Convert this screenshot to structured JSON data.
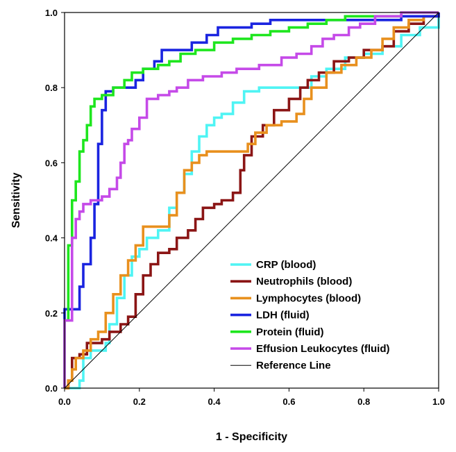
{
  "chart_data": {
    "type": "line",
    "title": "",
    "xlabel": "1 - Specificity",
    "ylabel": "Sensitivity",
    "xlim": [
      0,
      1
    ],
    "ylim": [
      0,
      1
    ],
    "x_ticks": [
      "0.0",
      "0.2",
      "0.4",
      "0.6",
      "0.8",
      "1.0"
    ],
    "y_ticks": [
      "0.0",
      "0.2",
      "0.4",
      "0.6",
      "0.8",
      "1.0"
    ],
    "grid": false,
    "legend_position": "bottom-right",
    "series": [
      {
        "name": "CRP (blood)",
        "color": "#4ff4f4",
        "points": [
          [
            0,
            0
          ],
          [
            0.02,
            0
          ],
          [
            0.04,
            0.02
          ],
          [
            0.05,
            0.08
          ],
          [
            0.07,
            0.1
          ],
          [
            0.09,
            0.1
          ],
          [
            0.11,
            0.12
          ],
          [
            0.12,
            0.17
          ],
          [
            0.14,
            0.24
          ],
          [
            0.16,
            0.3
          ],
          [
            0.18,
            0.35
          ],
          [
            0.2,
            0.37
          ],
          [
            0.22,
            0.4
          ],
          [
            0.25,
            0.42
          ],
          [
            0.28,
            0.48
          ],
          [
            0.3,
            0.52
          ],
          [
            0.32,
            0.57
          ],
          [
            0.34,
            0.63
          ],
          [
            0.36,
            0.67
          ],
          [
            0.38,
            0.7
          ],
          [
            0.4,
            0.72
          ],
          [
            0.42,
            0.73
          ],
          [
            0.45,
            0.76
          ],
          [
            0.48,
            0.79
          ],
          [
            0.52,
            0.8
          ],
          [
            0.58,
            0.8
          ],
          [
            0.62,
            0.8
          ],
          [
            0.66,
            0.83
          ],
          [
            0.7,
            0.85
          ],
          [
            0.75,
            0.88
          ],
          [
            0.8,
            0.89
          ],
          [
            0.85,
            0.91
          ],
          [
            0.9,
            0.94
          ],
          [
            0.95,
            0.96
          ],
          [
            1.0,
            1.0
          ]
        ]
      },
      {
        "name": "Neutrophils (blood)",
        "color": "#8b1515",
        "points": [
          [
            0,
            0
          ],
          [
            0.01,
            0.02
          ],
          [
            0.02,
            0.08
          ],
          [
            0.04,
            0.09
          ],
          [
            0.06,
            0.12
          ],
          [
            0.1,
            0.13
          ],
          [
            0.12,
            0.15
          ],
          [
            0.15,
            0.17
          ],
          [
            0.17,
            0.19
          ],
          [
            0.19,
            0.25
          ],
          [
            0.21,
            0.3
          ],
          [
            0.23,
            0.33
          ],
          [
            0.25,
            0.36
          ],
          [
            0.28,
            0.37
          ],
          [
            0.3,
            0.4
          ],
          [
            0.33,
            0.42
          ],
          [
            0.35,
            0.45
          ],
          [
            0.37,
            0.48
          ],
          [
            0.4,
            0.49
          ],
          [
            0.42,
            0.5
          ],
          [
            0.45,
            0.52
          ],
          [
            0.47,
            0.58
          ],
          [
            0.48,
            0.62
          ],
          [
            0.5,
            0.67
          ],
          [
            0.53,
            0.7
          ],
          [
            0.56,
            0.74
          ],
          [
            0.6,
            0.77
          ],
          [
            0.63,
            0.8
          ],
          [
            0.65,
            0.82
          ],
          [
            0.68,
            0.84
          ],
          [
            0.72,
            0.87
          ],
          [
            0.76,
            0.88
          ],
          [
            0.8,
            0.9
          ],
          [
            0.85,
            0.91
          ],
          [
            0.88,
            0.95
          ],
          [
            0.92,
            0.97
          ],
          [
            0.96,
            0.99
          ],
          [
            1.0,
            1.0
          ]
        ]
      },
      {
        "name": "Lymphocytes (blood)",
        "color": "#e8901e",
        "points": [
          [
            0,
            0
          ],
          [
            0.01,
            0.02
          ],
          [
            0.02,
            0.05
          ],
          [
            0.03,
            0.08
          ],
          [
            0.05,
            0.1
          ],
          [
            0.07,
            0.13
          ],
          [
            0.09,
            0.15
          ],
          [
            0.11,
            0.2
          ],
          [
            0.13,
            0.25
          ],
          [
            0.15,
            0.3
          ],
          [
            0.17,
            0.34
          ],
          [
            0.19,
            0.38
          ],
          [
            0.21,
            0.43
          ],
          [
            0.25,
            0.43
          ],
          [
            0.28,
            0.46
          ],
          [
            0.3,
            0.52
          ],
          [
            0.32,
            0.58
          ],
          [
            0.34,
            0.6
          ],
          [
            0.36,
            0.62
          ],
          [
            0.38,
            0.63
          ],
          [
            0.4,
            0.63
          ],
          [
            0.44,
            0.63
          ],
          [
            0.47,
            0.63
          ],
          [
            0.49,
            0.65
          ],
          [
            0.51,
            0.68
          ],
          [
            0.54,
            0.7
          ],
          [
            0.58,
            0.71
          ],
          [
            0.62,
            0.73
          ],
          [
            0.64,
            0.77
          ],
          [
            0.66,
            0.8
          ],
          [
            0.7,
            0.84
          ],
          [
            0.74,
            0.86
          ],
          [
            0.78,
            0.88
          ],
          [
            0.82,
            0.9
          ],
          [
            0.85,
            0.93
          ],
          [
            0.88,
            0.96
          ],
          [
            0.92,
            0.98
          ],
          [
            0.96,
            0.99
          ],
          [
            1.0,
            1.0
          ]
        ]
      },
      {
        "name": "LDH (fluid)",
        "color": "#1a24e0",
        "points": [
          [
            0,
            0
          ],
          [
            0,
            0.21
          ],
          [
            0.03,
            0.21
          ],
          [
            0.04,
            0.27
          ],
          [
            0.05,
            0.33
          ],
          [
            0.07,
            0.4
          ],
          [
            0.08,
            0.49
          ],
          [
            0.09,
            0.65
          ],
          [
            0.1,
            0.74
          ],
          [
            0.11,
            0.79
          ],
          [
            0.13,
            0.8
          ],
          [
            0.17,
            0.8
          ],
          [
            0.19,
            0.82
          ],
          [
            0.21,
            0.85
          ],
          [
            0.24,
            0.87
          ],
          [
            0.26,
            0.9
          ],
          [
            0.3,
            0.9
          ],
          [
            0.34,
            0.92
          ],
          [
            0.38,
            0.94
          ],
          [
            0.41,
            0.96
          ],
          [
            0.45,
            0.96
          ],
          [
            0.5,
            0.97
          ],
          [
            0.55,
            0.98
          ],
          [
            0.6,
            0.98
          ],
          [
            0.7,
            0.98
          ],
          [
            0.8,
            0.98
          ],
          [
            0.9,
            0.99
          ],
          [
            1.0,
            1.0
          ]
        ]
      },
      {
        "name": "Protein (fluid)",
        "color": "#1ee61e",
        "points": [
          [
            0,
            0
          ],
          [
            0,
            0.18
          ],
          [
            0.01,
            0.38
          ],
          [
            0.02,
            0.5
          ],
          [
            0.03,
            0.55
          ],
          [
            0.04,
            0.63
          ],
          [
            0.05,
            0.66
          ],
          [
            0.06,
            0.7
          ],
          [
            0.07,
            0.75
          ],
          [
            0.08,
            0.77
          ],
          [
            0.1,
            0.78
          ],
          [
            0.13,
            0.8
          ],
          [
            0.16,
            0.82
          ],
          [
            0.18,
            0.84
          ],
          [
            0.21,
            0.85
          ],
          [
            0.25,
            0.86
          ],
          [
            0.28,
            0.87
          ],
          [
            0.31,
            0.89
          ],
          [
            0.35,
            0.9
          ],
          [
            0.4,
            0.92
          ],
          [
            0.45,
            0.93
          ],
          [
            0.5,
            0.94
          ],
          [
            0.55,
            0.95
          ],
          [
            0.6,
            0.96
          ],
          [
            0.65,
            0.97
          ],
          [
            0.7,
            0.98
          ],
          [
            0.75,
            0.99
          ],
          [
            0.8,
            0.99
          ],
          [
            0.9,
            1.0
          ],
          [
            1.0,
            1.0
          ]
        ]
      },
      {
        "name": "Effusion Leukocytes (fluid)",
        "color": "#c54ae8",
        "points": [
          [
            0,
            0
          ],
          [
            0,
            0.18
          ],
          [
            0.01,
            0.18
          ],
          [
            0.02,
            0.4
          ],
          [
            0.03,
            0.45
          ],
          [
            0.04,
            0.47
          ],
          [
            0.05,
            0.49
          ],
          [
            0.07,
            0.5
          ],
          [
            0.1,
            0.51
          ],
          [
            0.12,
            0.53
          ],
          [
            0.14,
            0.56
          ],
          [
            0.15,
            0.6
          ],
          [
            0.16,
            0.65
          ],
          [
            0.17,
            0.66
          ],
          [
            0.18,
            0.69
          ],
          [
            0.2,
            0.72
          ],
          [
            0.22,
            0.77
          ],
          [
            0.25,
            0.78
          ],
          [
            0.28,
            0.79
          ],
          [
            0.3,
            0.8
          ],
          [
            0.33,
            0.82
          ],
          [
            0.37,
            0.83
          ],
          [
            0.42,
            0.84
          ],
          [
            0.46,
            0.85
          ],
          [
            0.52,
            0.86
          ],
          [
            0.58,
            0.88
          ],
          [
            0.62,
            0.89
          ],
          [
            0.66,
            0.91
          ],
          [
            0.69,
            0.93
          ],
          [
            0.72,
            0.94
          ],
          [
            0.76,
            0.96
          ],
          [
            0.79,
            0.97
          ],
          [
            0.83,
            0.99
          ],
          [
            0.9,
            1.0
          ],
          [
            1.0,
            1.0
          ]
        ]
      },
      {
        "name": "Reference Line",
        "color": "#000000",
        "points": [
          [
            0,
            0
          ],
          [
            1,
            1
          ]
        ]
      }
    ]
  }
}
